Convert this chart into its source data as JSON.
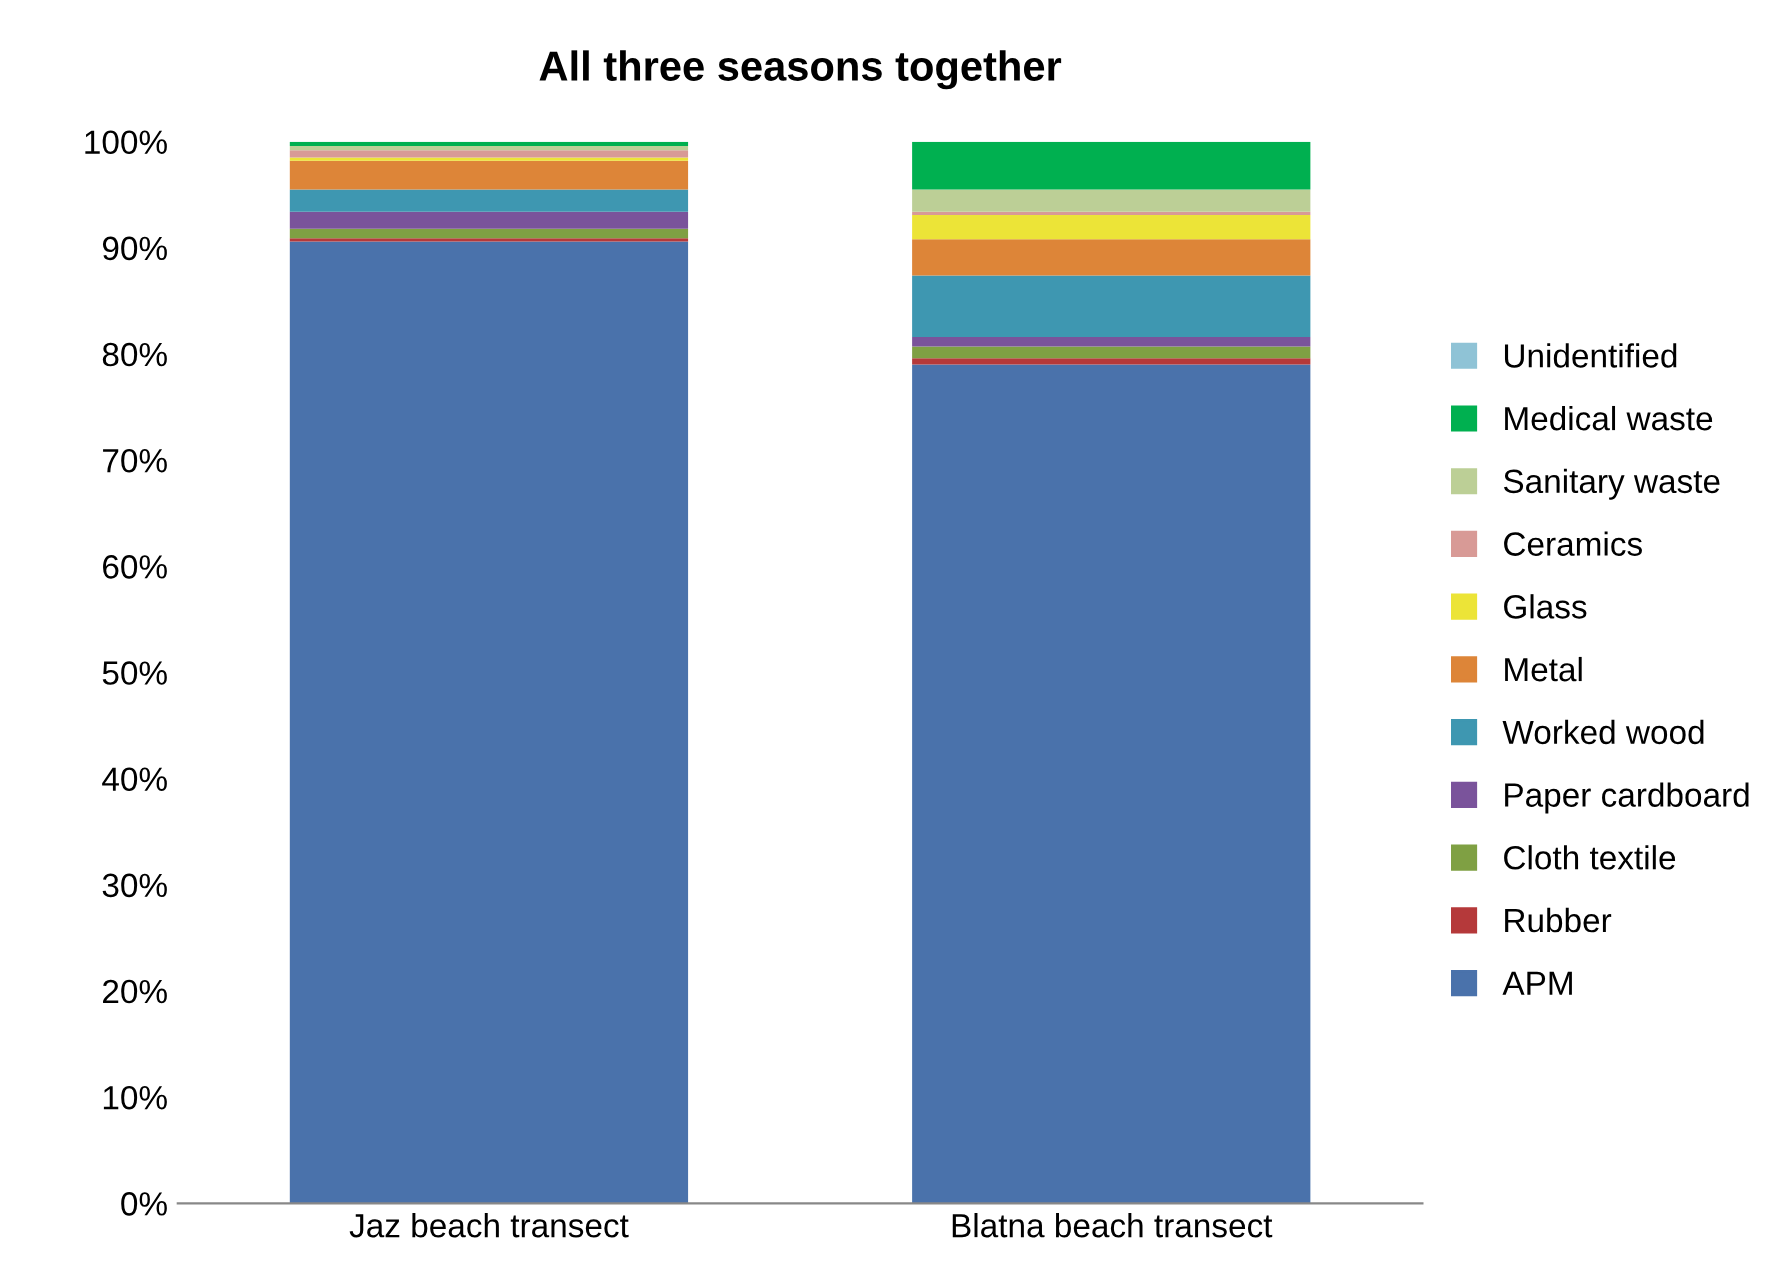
{
  "chart_data": {
    "type": "bar",
    "title": "All three seasons together",
    "stacked": true,
    "categories": [
      "Jaz beach transect",
      "Blatna beach transect"
    ],
    "series": [
      {
        "name": "APM",
        "color": "#4a72ab",
        "values": [
          90.6,
          79.0
        ]
      },
      {
        "name": "Rubber",
        "color": "#b5393a",
        "values": [
          0.3,
          0.6
        ]
      },
      {
        "name": "Cloth textile",
        "color": "#7fa043",
        "values": [
          0.9,
          1.1
        ]
      },
      {
        "name": "Paper cardboard",
        "color": "#7a539b",
        "values": [
          1.6,
          0.9
        ]
      },
      {
        "name": "Worked wood",
        "color": "#3e97b1",
        "values": [
          2.1,
          5.8
        ]
      },
      {
        "name": "Metal",
        "color": "#dd8538",
        "values": [
          2.7,
          3.4
        ]
      },
      {
        "name": "Glass",
        "color": "#ece437",
        "values": [
          0.3,
          2.3
        ]
      },
      {
        "name": "Ceramics",
        "color": "#d89a96",
        "values": [
          0.7,
          0.3
        ]
      },
      {
        "name": "Sanitary waste",
        "color": "#bccf96",
        "values": [
          0.4,
          2.1
        ]
      },
      {
        "name": "Medical waste",
        "color": "#00b050",
        "values": [
          0.4,
          4.5
        ]
      },
      {
        "name": "Unidentified",
        "color": "#8fc3d6",
        "values": [
          0,
          0
        ]
      }
    ],
    "ylim": [
      0,
      100
    ],
    "yticks": [
      {
        "value": 0,
        "label": "0%"
      },
      {
        "value": 10,
        "label": "10%"
      },
      {
        "value": 20,
        "label": "20%"
      },
      {
        "value": 30,
        "label": "30%"
      },
      {
        "value": 40,
        "label": "40%"
      },
      {
        "value": 50,
        "label": "50%"
      },
      {
        "value": 60,
        "label": "60%"
      },
      {
        "value": 70,
        "label": "70%"
      },
      {
        "value": 80,
        "label": "80%"
      },
      {
        "value": 90,
        "label": "90%"
      },
      {
        "value": 100,
        "label": "100%"
      }
    ],
    "legend": "right"
  }
}
